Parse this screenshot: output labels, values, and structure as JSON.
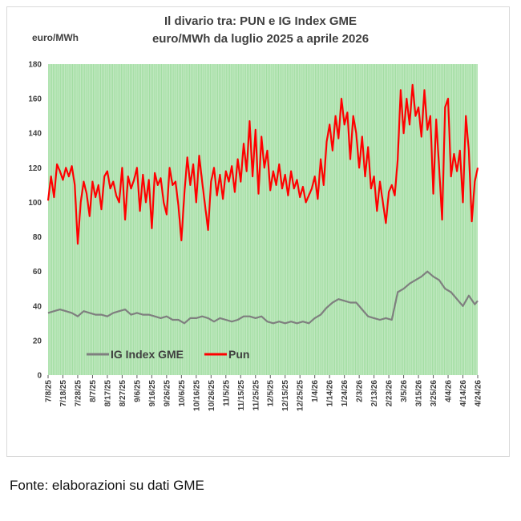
{
  "chart_data": {
    "type": "line",
    "title": "Il divario tra: PUN e IG Index GME",
    "subtitle": "euro/MWh da luglio 2025 a aprile  2026",
    "ylabel": "euro/MWh",
    "xlabel": "",
    "ylim": [
      0,
      180
    ],
    "yticks": [
      "0",
      "20",
      "40",
      "60",
      "80",
      "100",
      "120",
      "140",
      "160",
      "180"
    ],
    "x_tick_labels": [
      "7/8/25",
      "7/18/25",
      "7/28/25",
      "8/7/25",
      "8/17/25",
      "8/27/25",
      "9/6/25",
      "9/16/25",
      "9/26/25",
      "10/6/25",
      "10/16/25",
      "10/26/25",
      "11/5/25",
      "11/15/25",
      "11/25/25",
      "12/5/25",
      "12/15/25",
      "12/25/25",
      "1/4/26",
      "1/14/26",
      "1/24/26",
      "2/3/26",
      "2/13/26",
      "2/23/26",
      "3/5/26",
      "3/15/26",
      "3/25/26",
      "4/4/26",
      "4/14/26",
      "4/24/26"
    ],
    "grid": "vertical daily",
    "plot_background": "#a3dea3",
    "legend_position": "lower-left",
    "series": [
      {
        "name": "IG Index GME",
        "color": "#7f7f7f",
        "points": [
          [
            "7/8/25",
            36
          ],
          [
            "7/12/25",
            37
          ],
          [
            "7/16/25",
            38
          ],
          [
            "7/20/25",
            37
          ],
          [
            "7/24/25",
            36
          ],
          [
            "7/28/25",
            34
          ],
          [
            "8/1/25",
            37
          ],
          [
            "8/5/25",
            36
          ],
          [
            "8/9/25",
            35
          ],
          [
            "8/13/25",
            35
          ],
          [
            "8/17/25",
            34
          ],
          [
            "8/21/25",
            36
          ],
          [
            "8/25/25",
            37
          ],
          [
            "8/29/25",
            38
          ],
          [
            "9/2/25",
            35
          ],
          [
            "9/6/25",
            36
          ],
          [
            "9/10/25",
            35
          ],
          [
            "9/14/25",
            35
          ],
          [
            "9/18/25",
            34
          ],
          [
            "9/22/25",
            33
          ],
          [
            "9/26/25",
            34
          ],
          [
            "9/30/25",
            32
          ],
          [
            "10/4/25",
            32
          ],
          [
            "10/8/25",
            30
          ],
          [
            "10/12/25",
            33
          ],
          [
            "10/16/25",
            33
          ],
          [
            "10/20/25",
            34
          ],
          [
            "10/24/25",
            33
          ],
          [
            "10/28/25",
            31
          ],
          [
            "11/1/25",
            33
          ],
          [
            "11/5/25",
            32
          ],
          [
            "11/9/25",
            31
          ],
          [
            "11/13/25",
            32
          ],
          [
            "11/17/25",
            34
          ],
          [
            "11/21/25",
            34
          ],
          [
            "11/25/25",
            33
          ],
          [
            "11/29/25",
            34
          ],
          [
            "12/3/25",
            31
          ],
          [
            "12/7/25",
            30
          ],
          [
            "12/11/25",
            31
          ],
          [
            "12/15/25",
            30
          ],
          [
            "12/19/25",
            31
          ],
          [
            "12/23/25",
            30
          ],
          [
            "12/27/25",
            31
          ],
          [
            "12/31/25",
            30
          ],
          [
            "1/4/26",
            33
          ],
          [
            "1/8/26",
            35
          ],
          [
            "1/12/26",
            39
          ],
          [
            "1/16/26",
            42
          ],
          [
            "1/20/26",
            44
          ],
          [
            "1/24/26",
            43
          ],
          [
            "1/28/26",
            42
          ],
          [
            "2/1/26",
            42
          ],
          [
            "2/5/26",
            38
          ],
          [
            "2/9/26",
            34
          ],
          [
            "2/13/26",
            33
          ],
          [
            "2/17/26",
            32
          ],
          [
            "2/21/26",
            33
          ],
          [
            "2/25/26",
            32
          ],
          [
            "3/1/26",
            48
          ],
          [
            "3/5/26",
            50
          ],
          [
            "3/9/26",
            53
          ],
          [
            "3/13/26",
            55
          ],
          [
            "3/17/26",
            57
          ],
          [
            "3/21/26",
            60
          ],
          [
            "3/25/26",
            57
          ],
          [
            "3/29/26",
            55
          ],
          [
            "4/2/26",
            50
          ],
          [
            "4/6/26",
            48
          ],
          [
            "4/10/26",
            44
          ],
          [
            "4/14/26",
            40
          ],
          [
            "4/18/26",
            46
          ],
          [
            "4/22/26",
            41
          ],
          [
            "4/24/26",
            43
          ]
        ]
      },
      {
        "name": "Pun",
        "color": "#ff0000",
        "points": [
          [
            "7/8/25",
            101
          ],
          [
            "7/10/25",
            115
          ],
          [
            "7/12/25",
            103
          ],
          [
            "7/14/25",
            122
          ],
          [
            "7/16/25",
            118
          ],
          [
            "7/18/25",
            113
          ],
          [
            "7/20/25",
            120
          ],
          [
            "7/22/25",
            115
          ],
          [
            "7/24/25",
            121
          ],
          [
            "7/26/25",
            110
          ],
          [
            "7/28/25",
            76
          ],
          [
            "7/30/25",
            100
          ],
          [
            "8/1/25",
            112
          ],
          [
            "8/3/25",
            105
          ],
          [
            "8/5/25",
            92
          ],
          [
            "8/7/25",
            112
          ],
          [
            "8/9/25",
            103
          ],
          [
            "8/11/25",
            110
          ],
          [
            "8/13/25",
            96
          ],
          [
            "8/15/25",
            115
          ],
          [
            "8/17/25",
            118
          ],
          [
            "8/19/25",
            108
          ],
          [
            "8/21/25",
            112
          ],
          [
            "8/23/25",
            104
          ],
          [
            "8/25/25",
            100
          ],
          [
            "8/27/25",
            120
          ],
          [
            "8/29/25",
            90
          ],
          [
            "8/31/25",
            115
          ],
          [
            "9/2/25",
            108
          ],
          [
            "9/4/25",
            113
          ],
          [
            "9/6/25",
            120
          ],
          [
            "9/8/25",
            95
          ],
          [
            "9/10/25",
            116
          ],
          [
            "9/12/25",
            100
          ],
          [
            "9/14/25",
            113
          ],
          [
            "9/16/25",
            85
          ],
          [
            "9/18/25",
            117
          ],
          [
            "9/20/25",
            110
          ],
          [
            "9/22/25",
            114
          ],
          [
            "9/24/25",
            100
          ],
          [
            "9/26/25",
            93
          ],
          [
            "9/28/25",
            120
          ],
          [
            "9/30/25",
            110
          ],
          [
            "10/2/25",
            112
          ],
          [
            "10/4/25",
            98
          ],
          [
            "10/6/25",
            78
          ],
          [
            "10/8/25",
            105
          ],
          [
            "10/10/25",
            126
          ],
          [
            "10/12/25",
            110
          ],
          [
            "10/14/25",
            122
          ],
          [
            "10/16/25",
            100
          ],
          [
            "10/18/25",
            127
          ],
          [
            "10/20/25",
            112
          ],
          [
            "10/22/25",
            98
          ],
          [
            "10/24/25",
            84
          ],
          [
            "10/26/25",
            112
          ],
          [
            "10/28/25",
            120
          ],
          [
            "10/30/25",
            104
          ],
          [
            "11/1/25",
            116
          ],
          [
            "11/3/25",
            102
          ],
          [
            "11/5/25",
            118
          ],
          [
            "11/7/25",
            112
          ],
          [
            "11/9/25",
            121
          ],
          [
            "11/11/25",
            106
          ],
          [
            "11/13/25",
            125
          ],
          [
            "11/15/25",
            112
          ],
          [
            "11/17/25",
            134
          ],
          [
            "11/19/25",
            118
          ],
          [
            "11/21/25",
            147
          ],
          [
            "11/23/25",
            115
          ],
          [
            "11/25/25",
            142
          ],
          [
            "11/27/25",
            105
          ],
          [
            "11/29/25",
            138
          ],
          [
            "12/1/25",
            120
          ],
          [
            "12/3/25",
            130
          ],
          [
            "12/5/25",
            107
          ],
          [
            "12/7/25",
            118
          ],
          [
            "12/9/25",
            110
          ],
          [
            "12/11/25",
            122
          ],
          [
            "12/13/25",
            108
          ],
          [
            "12/15/25",
            116
          ],
          [
            "12/17/25",
            104
          ],
          [
            "12/19/25",
            118
          ],
          [
            "12/21/25",
            108
          ],
          [
            "12/23/25",
            113
          ],
          [
            "12/25/25",
            103
          ],
          [
            "12/27/25",
            109
          ],
          [
            "12/29/25",
            100
          ],
          [
            "12/31/25",
            104
          ],
          [
            "1/2/26",
            108
          ],
          [
            "1/4/26",
            115
          ],
          [
            "1/6/26",
            102
          ],
          [
            "1/8/26",
            125
          ],
          [
            "1/10/26",
            110
          ],
          [
            "1/12/26",
            135
          ],
          [
            "1/14/26",
            145
          ],
          [
            "1/16/26",
            130
          ],
          [
            "1/18/26",
            150
          ],
          [
            "1/20/26",
            137
          ],
          [
            "1/22/26",
            160
          ],
          [
            "1/24/26",
            145
          ],
          [
            "1/26/26",
            152
          ],
          [
            "1/28/26",
            125
          ],
          [
            "1/30/26",
            150
          ],
          [
            "2/1/26",
            140
          ],
          [
            "2/3/26",
            120
          ],
          [
            "2/5/26",
            138
          ],
          [
            "2/7/26",
            115
          ],
          [
            "2/9/26",
            132
          ],
          [
            "2/11/26",
            108
          ],
          [
            "2/13/26",
            115
          ],
          [
            "2/15/26",
            95
          ],
          [
            "2/17/26",
            112
          ],
          [
            "2/19/26",
            100
          ],
          [
            "2/21/26",
            88
          ],
          [
            "2/23/26",
            106
          ],
          [
            "2/25/26",
            110
          ],
          [
            "2/27/26",
            104
          ],
          [
            "3/1/26",
            125
          ],
          [
            "3/3/26",
            165
          ],
          [
            "3/5/26",
            140
          ],
          [
            "3/7/26",
            160
          ],
          [
            "3/9/26",
            145
          ],
          [
            "3/11/26",
            168
          ],
          [
            "3/13/26",
            150
          ],
          [
            "3/15/26",
            155
          ],
          [
            "3/17/26",
            138
          ],
          [
            "3/19/26",
            165
          ],
          [
            "3/21/26",
            142
          ],
          [
            "3/23/26",
            150
          ],
          [
            "3/25/26",
            105
          ],
          [
            "3/27/26",
            148
          ],
          [
            "3/29/26",
            120
          ],
          [
            "3/31/26",
            90
          ],
          [
            "4/2/26",
            155
          ],
          [
            "4/4/26",
            160
          ],
          [
            "4/6/26",
            115
          ],
          [
            "4/8/26",
            128
          ],
          [
            "4/10/26",
            118
          ],
          [
            "4/12/26",
            130
          ],
          [
            "4/14/26",
            100
          ],
          [
            "4/16/26",
            150
          ],
          [
            "4/18/26",
            130
          ],
          [
            "4/20/26",
            89
          ],
          [
            "4/22/26",
            112
          ],
          [
            "4/24/26",
            120
          ]
        ]
      }
    ]
  },
  "footer": {
    "source": "Fonte: elaborazioni su dati GME"
  }
}
